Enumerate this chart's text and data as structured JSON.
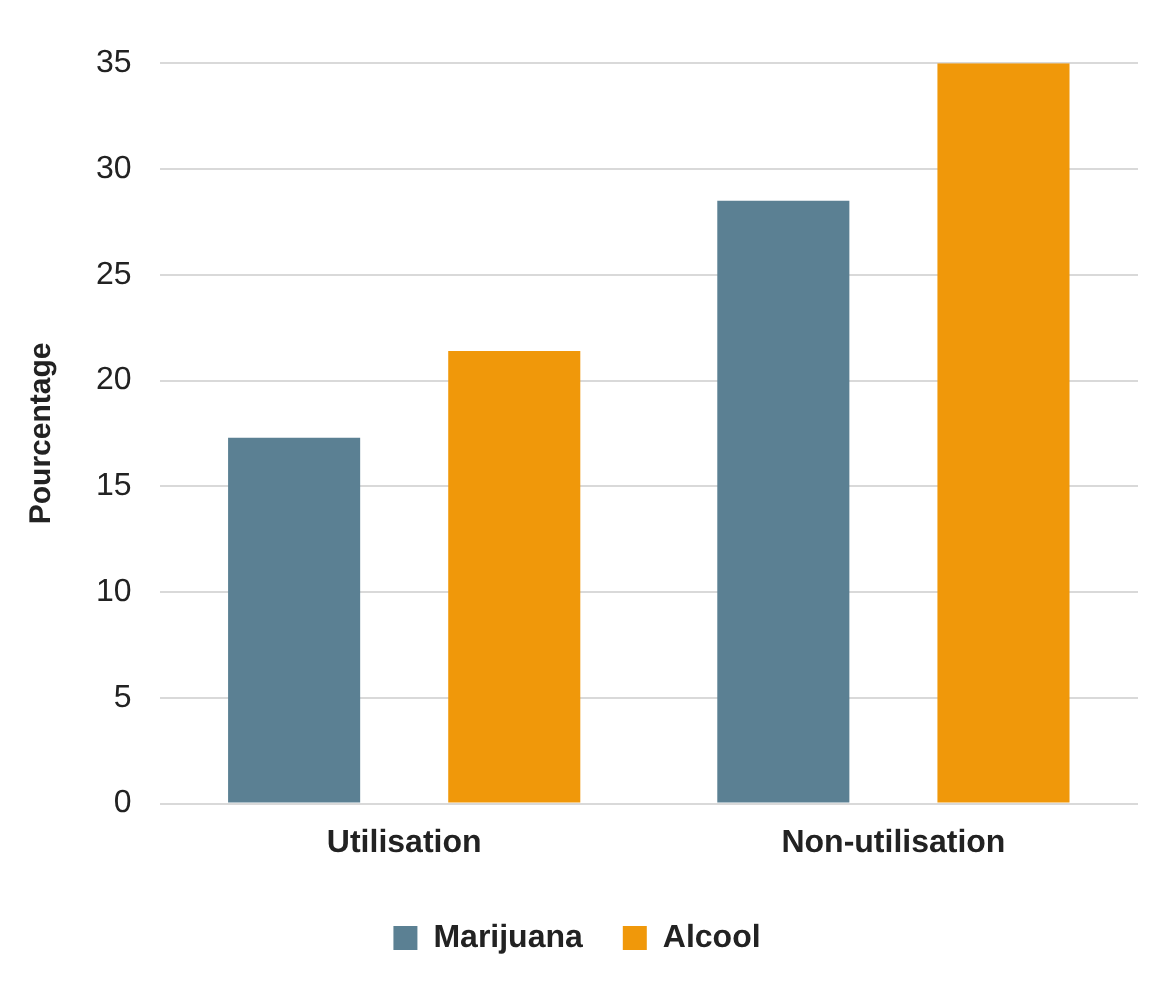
{
  "chart_data": {
    "type": "bar",
    "ylabel": "Pourcentage",
    "categories": [
      "Utilisation",
      "Non-utilisation"
    ],
    "series": [
      {
        "name": "Marijuana",
        "color": "#5b8093",
        "values": [
          17.3,
          28.5
        ]
      },
      {
        "name": "Alcool",
        "color": "#f0980a",
        "values": [
          21.4,
          35
        ]
      }
    ],
    "ylim": [
      0,
      35
    ],
    "yticks": [
      0,
      5,
      10,
      15,
      20,
      25,
      30,
      35
    ],
    "grid": "y",
    "legend": "bottom"
  }
}
